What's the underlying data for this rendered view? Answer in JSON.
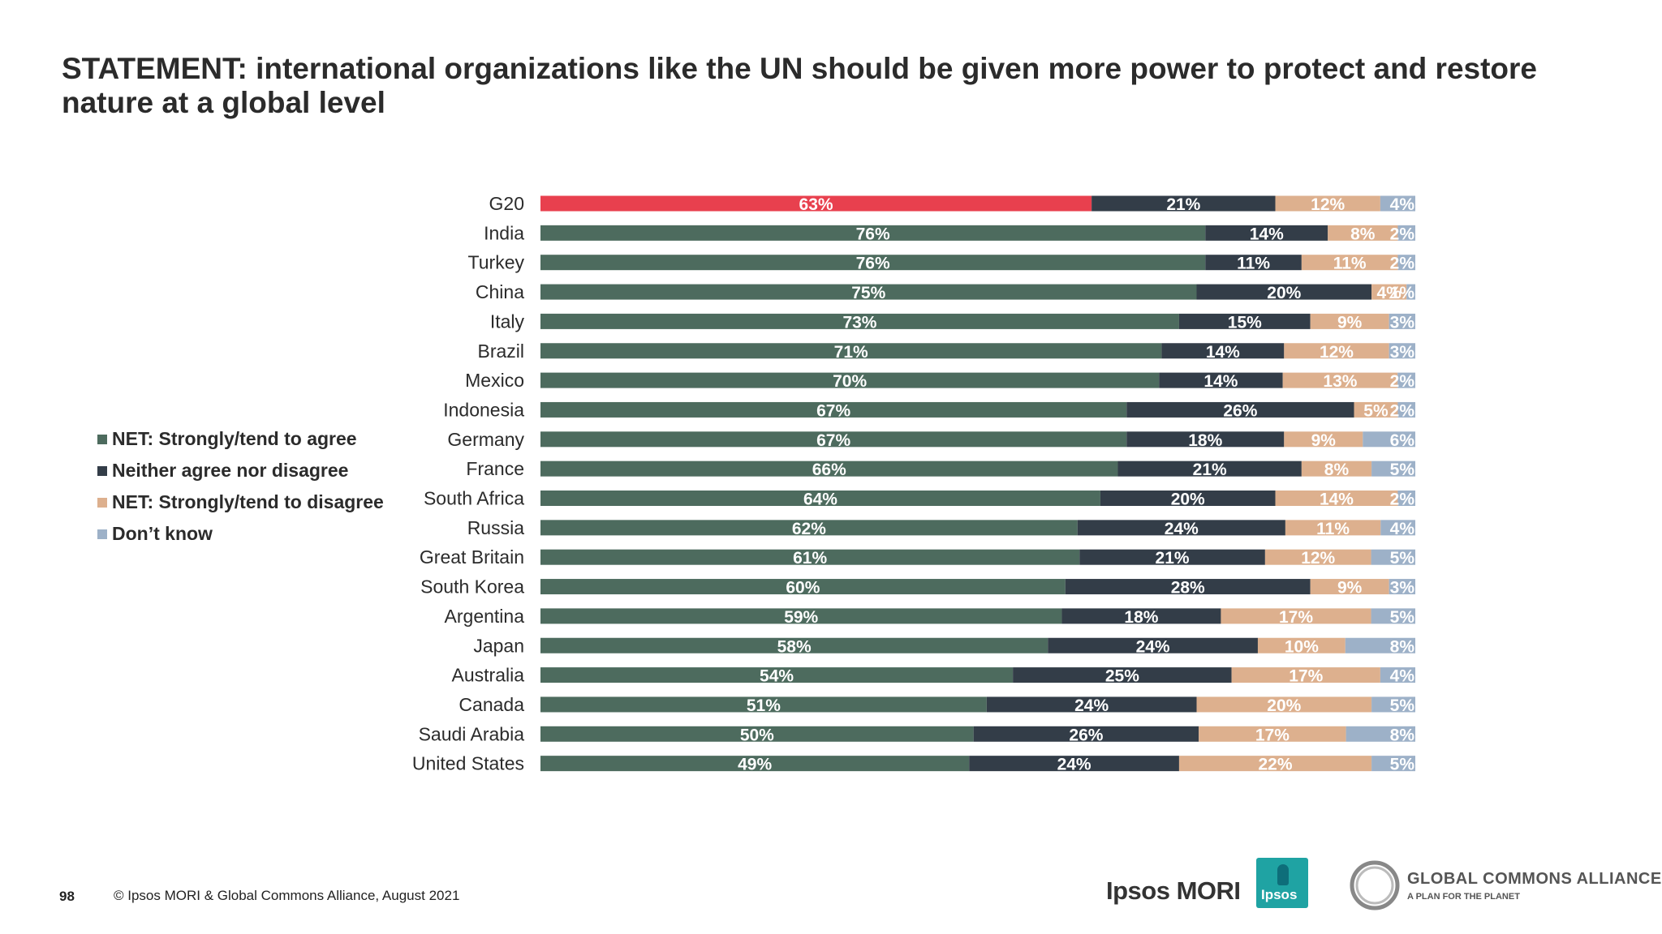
{
  "title": "STATEMENT: international organizations like the UN should be given more power to protect and restore nature at a global level",
  "footer": {
    "page_number": "98",
    "copyright": "© Ipsos MORI & Global Commons Alliance, August 2021"
  },
  "logos": {
    "ipsos_mori": "Ipsos MORI",
    "ipsos_badge": "Ipsos",
    "gca_name": "GLOBAL COMMONS ALLIANCE",
    "gca_tagline": "A PLAN FOR THE PLANET"
  },
  "colors": {
    "agree": "#4d6b5e",
    "neither": "#333d48",
    "disagree": "#ddb08e",
    "dont_know": "#9db1c8",
    "highlight": "#e8404e"
  },
  "chart_data": {
    "type": "bar",
    "orientation": "horizontal",
    "stacked": true,
    "normalized_percent": true,
    "categories": [
      "G20",
      "India",
      "Turkey",
      "China",
      "Italy",
      "Brazil",
      "Mexico",
      "Indonesia",
      "Germany",
      "France",
      "South Africa",
      "Russia",
      "Great Britain",
      "South Korea",
      "Argentina",
      "Japan",
      "Australia",
      "Canada",
      "Saudi Arabia",
      "United States"
    ],
    "series": [
      {
        "name": "NET: Strongly/tend to agree",
        "values": [
          63,
          76,
          76,
          75,
          73,
          71,
          70,
          67,
          67,
          66,
          64,
          62,
          61,
          60,
          59,
          58,
          54,
          51,
          50,
          49
        ]
      },
      {
        "name": "Neither agree nor disagree",
        "values": [
          21,
          14,
          11,
          20,
          15,
          14,
          14,
          26,
          18,
          21,
          20,
          24,
          21,
          28,
          18,
          24,
          25,
          24,
          26,
          24
        ]
      },
      {
        "name": "NET: Strongly/tend to disagree",
        "values": [
          12,
          8,
          11,
          4,
          9,
          12,
          13,
          5,
          9,
          8,
          14,
          11,
          12,
          9,
          17,
          10,
          17,
          20,
          17,
          22
        ]
      },
      {
        "name": "Don’t know",
        "values": [
          4,
          2,
          2,
          1,
          3,
          3,
          2,
          2,
          6,
          5,
          2,
          4,
          5,
          3,
          5,
          8,
          4,
          5,
          8,
          5
        ]
      }
    ],
    "value_labels": [
      [
        "63%",
        "21%",
        "12%",
        "4%"
      ],
      [
        "76%",
        "14%",
        "8%",
        "2%"
      ],
      [
        "76%",
        "11%",
        "11%",
        "2%"
      ],
      [
        "75%",
        "20%",
        "4%",
        "1%"
      ],
      [
        "73%",
        "15%",
        "9%",
        "3%"
      ],
      [
        "71%",
        "14%",
        "12%",
        "3%"
      ],
      [
        "70%",
        "14%",
        "13%",
        "2%"
      ],
      [
        "67%",
        "26%",
        "5%",
        "2%"
      ],
      [
        "67%",
        "18%",
        "9%",
        "6%"
      ],
      [
        "66%",
        "21%",
        "8%",
        "5%"
      ],
      [
        "64%",
        "20%",
        "14%",
        "2%"
      ],
      [
        "62%",
        "24%",
        "11%",
        "4%"
      ],
      [
        "61%",
        "21%",
        "12%",
        "5%"
      ],
      [
        "60%",
        "28%",
        "9%",
        "3%"
      ],
      [
        "59%",
        "18%",
        "17%",
        "5%"
      ],
      [
        "58%",
        "24%",
        "10%",
        "8%"
      ],
      [
        "54%",
        "25%",
        "17%",
        "4%"
      ],
      [
        "51%",
        "24%",
        "20%",
        "5%"
      ],
      [
        "50%",
        "26%",
        "17%",
        "8%"
      ],
      [
        "49%",
        "24%",
        "22%",
        "5%"
      ]
    ],
    "highlight_category": "G20",
    "legend_position": "left",
    "grid": false
  }
}
